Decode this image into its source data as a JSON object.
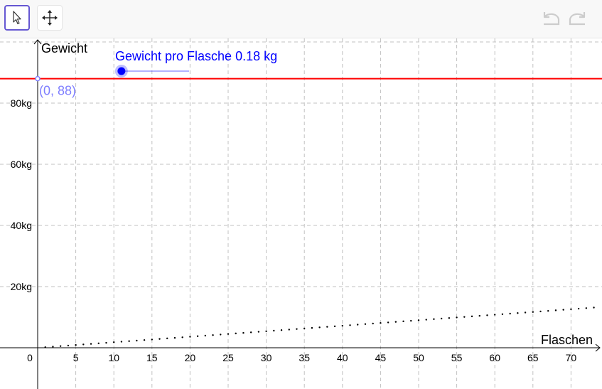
{
  "toolbar": {
    "tools": [
      {
        "name": "pointer-tool",
        "icon": "arrow-cursor-icon",
        "active": true
      },
      {
        "name": "move-graphics-view-tool",
        "icon": "move-arrows-icon",
        "active": false
      }
    ],
    "history": [
      {
        "name": "undo",
        "icon": "undo-icon",
        "enabled": false
      },
      {
        "name": "redo",
        "icon": "redo-icon",
        "enabled": false
      }
    ]
  },
  "graph": {
    "x_axis_label": "Flaschen",
    "y_axis_label": "Gewicht",
    "x_ticks": [
      "0",
      "5",
      "10",
      "15",
      "20",
      "25",
      "30",
      "35",
      "40",
      "45",
      "50",
      "55",
      "60",
      "65",
      "70"
    ],
    "y_ticks": [
      "20kg",
      "40kg",
      "60kg",
      "80kg"
    ],
    "x_range": [
      0,
      73
    ],
    "y_range": [
      -4,
      101
    ],
    "grid": "dashed",
    "slider": {
      "label": "Gewicht pro Flasche 0.18 kg",
      "value": 0.18,
      "min": 0,
      "max": 1,
      "color": "#0000ff"
    },
    "horizontal_line": {
      "y": 88,
      "color": "#ff0000"
    },
    "point_label": "(0, 88)",
    "point_color": "#7f7fff",
    "dotted_series": {
      "slope": 0.18,
      "from_x": 1,
      "to_x": 73,
      "step": 1
    }
  }
}
